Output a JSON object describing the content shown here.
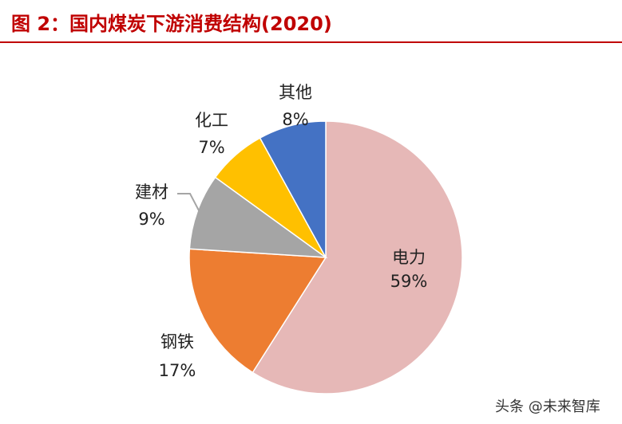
{
  "title": "图 2：国内煤炭下游消费结构(2020)",
  "watermark": "头条 @未来智库",
  "colors": {
    "title": "#c00000"
  },
  "chart_data": {
    "type": "pie",
    "title": "图 2：国内煤炭下游消费结构(2020)",
    "start": "12 o'clock, clockwise",
    "slices": [
      {
        "label": "电力",
        "value": 59,
        "display": "59%",
        "color": "#e6b8b7"
      },
      {
        "label": "钢铁",
        "value": 17,
        "display": "17%",
        "color": "#ed7d31"
      },
      {
        "label": "建材",
        "value": 9,
        "display": "9%",
        "color": "#a5a5a5"
      },
      {
        "label": "化工",
        "value": 7,
        "display": "7%",
        "color": "#ffc000"
      },
      {
        "label": "其他",
        "value": 8,
        "display": "8%",
        "color": "#4472c4"
      }
    ]
  }
}
